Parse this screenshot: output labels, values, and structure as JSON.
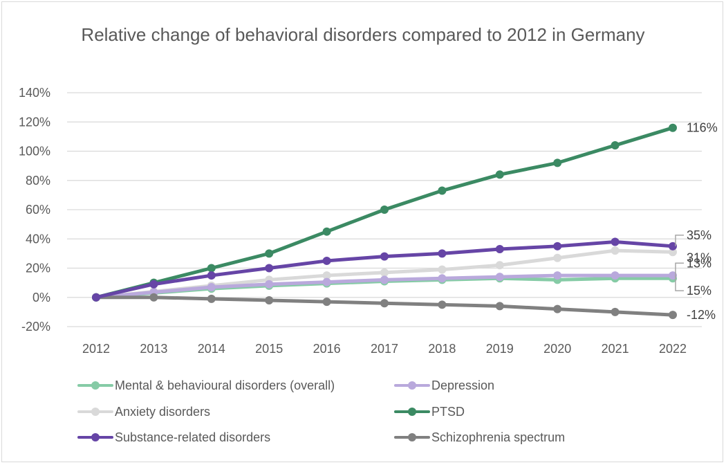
{
  "chart_data": {
    "type": "line",
    "title": "Relative change of behavioral disorders compared to 2012 in Germany",
    "xlabel": "",
    "ylabel": "",
    "x": [
      "2012",
      "2013",
      "2014",
      "2015",
      "2016",
      "2017",
      "2018",
      "2019",
      "2020",
      "2021",
      "2022"
    ],
    "ylim": [
      -20,
      140
    ],
    "yticks": [
      -20,
      0,
      20,
      40,
      60,
      80,
      100,
      120,
      140
    ],
    "ytick_labels": [
      "-20%",
      "0%",
      "20%",
      "40%",
      "60%",
      "80%",
      "100%",
      "120%",
      "140%"
    ],
    "grid": true,
    "legend_position": "bottom",
    "series": [
      {
        "name": "Mental & behavioural disorders (overall)",
        "color": "#86cba6",
        "values": [
          0,
          3,
          6,
          8,
          9.5,
          11,
          12,
          13,
          12,
          13,
          13
        ],
        "end_label": "13%"
      },
      {
        "name": "Depression",
        "color": "#b9a9dc",
        "values": [
          0,
          3.5,
          7,
          9,
          10.5,
          12,
          13,
          14,
          15,
          15,
          15
        ],
        "end_label": "15%"
      },
      {
        "name": "Anxiety disorders",
        "color": "#d9d9d9",
        "values": [
          0,
          4,
          8,
          12,
          15,
          17,
          19,
          22,
          27,
          32,
          31
        ],
        "end_label": "31%"
      },
      {
        "name": "PTSD",
        "color": "#3b8a63",
        "values": [
          0,
          10,
          20,
          30,
          45,
          60,
          73,
          84,
          92,
          104,
          116
        ],
        "end_label": "116%"
      },
      {
        "name": "Substance-related disorders",
        "color": "#6645a6",
        "values": [
          0,
          9,
          15,
          20,
          25,
          28,
          30,
          33,
          35,
          38,
          35
        ],
        "end_label": "35%"
      },
      {
        "name": "Schizophrenia spectrum",
        "color": "#808080",
        "values": [
          0,
          0,
          -1,
          -2,
          -3,
          -4,
          -5,
          -6,
          -8,
          -10,
          -12
        ],
        "end_label": "-12%"
      }
    ]
  }
}
